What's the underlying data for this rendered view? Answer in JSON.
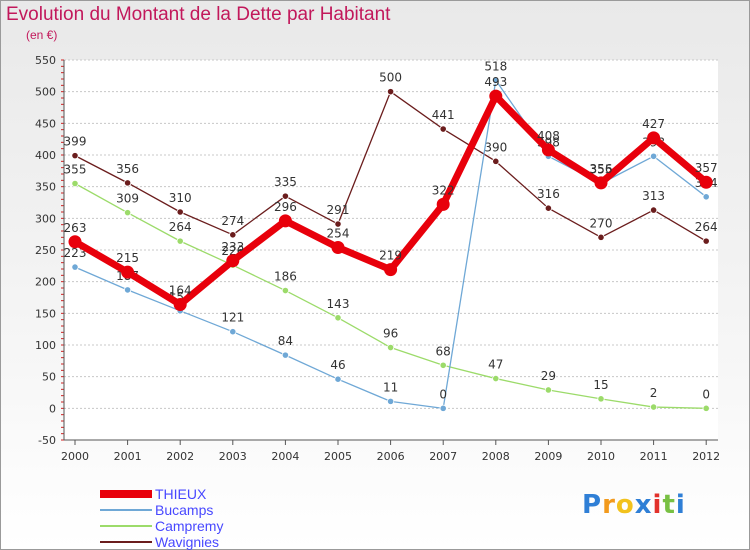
{
  "chart_data": {
    "type": "line",
    "title": "Evolution du Montant de la Dette par Habitant",
    "subtitle": "(en €)",
    "categories": [
      "2000",
      "2001",
      "2002",
      "2003",
      "2004",
      "2005",
      "2006",
      "2007",
      "2008",
      "2009",
      "2010",
      "2011",
      "2012"
    ],
    "ylim": [
      -50,
      550
    ],
    "yticks": [
      -50,
      0,
      50,
      100,
      150,
      200,
      250,
      300,
      350,
      400,
      450,
      500,
      550
    ],
    "grid": "horizontal",
    "legend_position": "bottom-left",
    "series": [
      {
        "name": "Wavignies",
        "color": "#6b1d1d",
        "values": [
          399,
          356,
          310,
          274,
          335,
          291,
          500,
          441,
          390,
          316,
          270,
          313,
          264
        ]
      },
      {
        "name": "Campremy",
        "color": "#9cdb6a",
        "values": [
          355,
          309,
          264,
          226,
          186,
          143,
          96,
          68,
          47,
          29,
          15,
          2,
          0
        ]
      },
      {
        "name": "Bucamps",
        "color": "#6fa8d6",
        "values": [
          223,
          187,
          154,
          121,
          84,
          46,
          11,
          0,
          518,
          398,
          355,
          398,
          334
        ]
      },
      {
        "name": "THIEUX",
        "color": "#e8000b",
        "values": [
          263,
          215,
          164,
          233,
          296,
          254,
          219,
          322,
          493,
          408,
          356,
          427,
          357
        ]
      }
    ]
  },
  "legend_order": [
    "THIEUX",
    "Bucamps",
    "Campremy",
    "Wavignies"
  ],
  "legend_text_color": "#4848ff",
  "logo": {
    "letters": [
      "P",
      "r",
      "o",
      "x",
      "i",
      "t",
      "i"
    ],
    "colors": [
      "#2f7fd6",
      "#f29a1d",
      "#f2c21d",
      "#2f7fd6",
      "#e2312b",
      "#78c043",
      "#2f7fd6"
    ]
  }
}
